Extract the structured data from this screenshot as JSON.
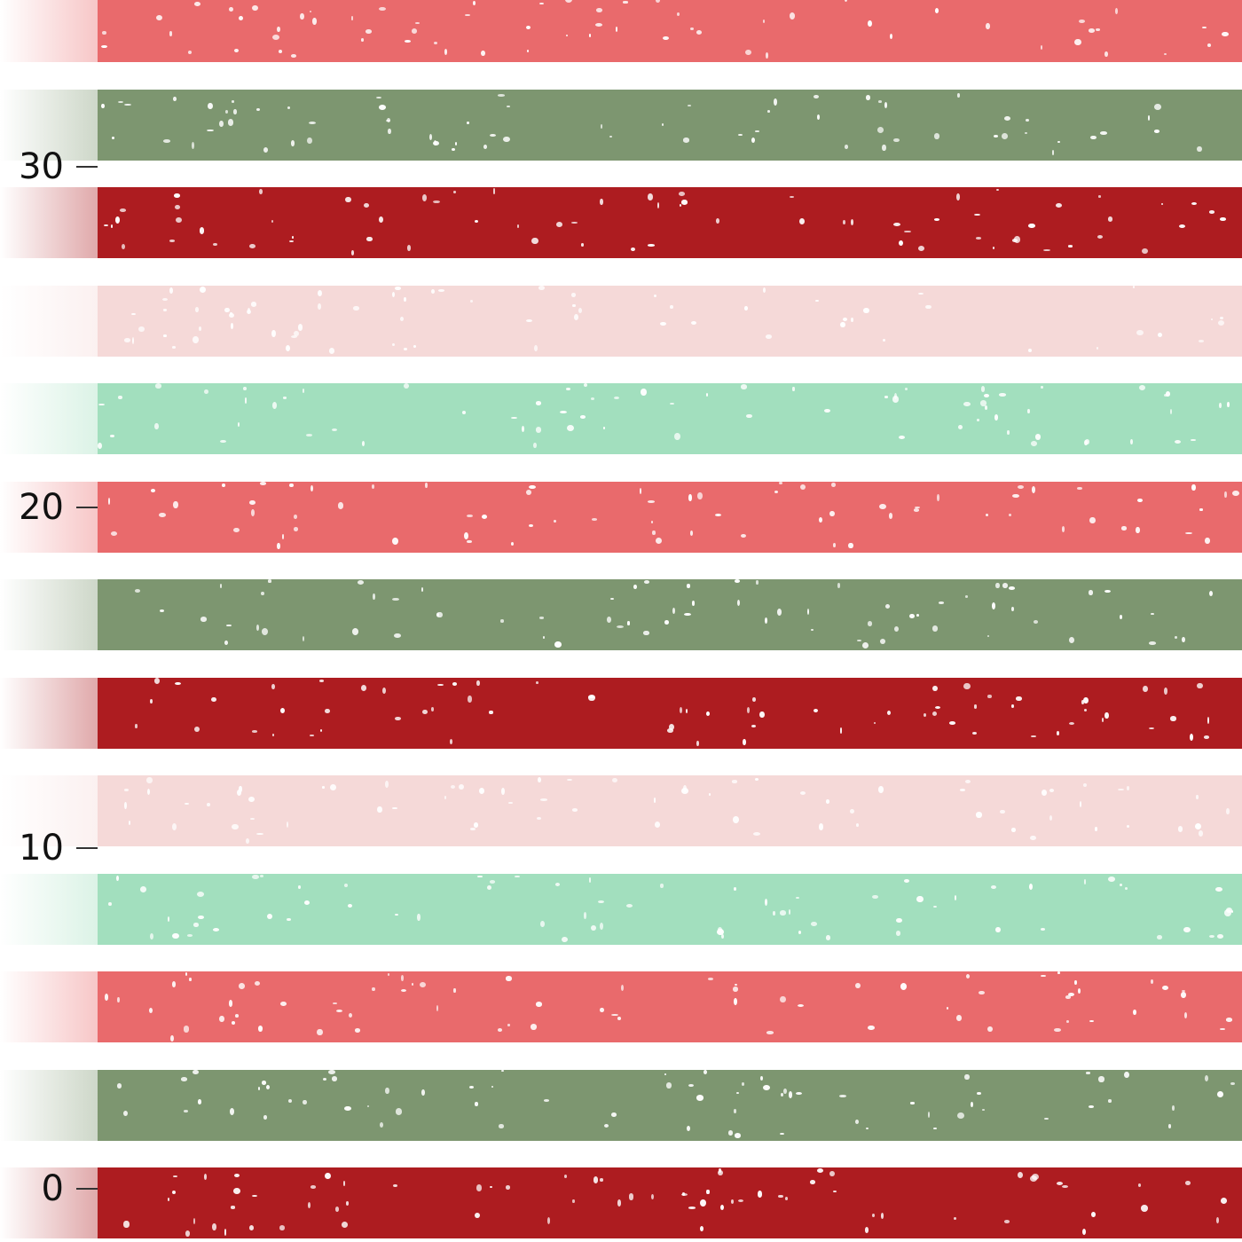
{
  "palette": {
    "coral": "#e96a6c",
    "sage": "#7d9670",
    "crimson": "#ad1c20",
    "blush": "#f5d9d8",
    "mint": "#a2dfbe",
    "background": "#ffffff"
  },
  "stripes": [
    {
      "color": "coral"
    },
    {
      "color": "sage"
    },
    {
      "color": "crimson"
    },
    {
      "color": "blush"
    },
    {
      "color": "mint"
    },
    {
      "color": "coral"
    },
    {
      "color": "sage"
    },
    {
      "color": "crimson"
    },
    {
      "color": "blush"
    },
    {
      "color": "mint"
    },
    {
      "color": "coral"
    },
    {
      "color": "sage"
    },
    {
      "color": "crimson"
    }
  ],
  "ticks": [
    {
      "label": "30",
      "value": 30
    },
    {
      "label": "20",
      "value": 20
    },
    {
      "label": "10",
      "value": 10
    },
    {
      "label": "0",
      "value": 0
    }
  ]
}
